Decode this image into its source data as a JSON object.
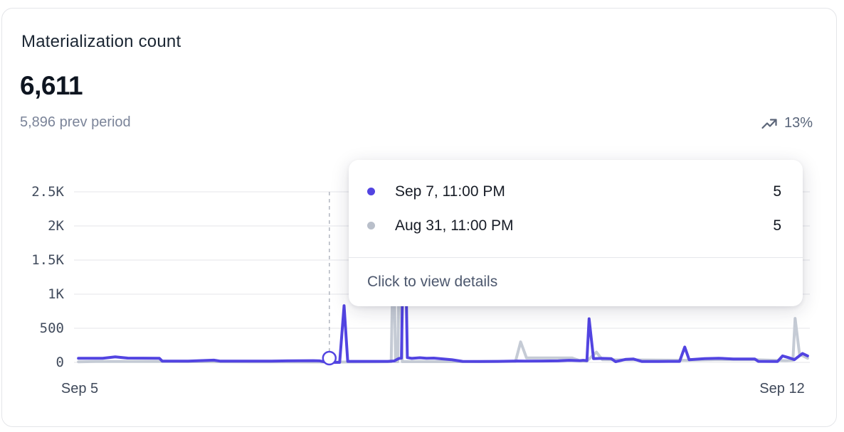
{
  "card": {
    "title": "Materialization count",
    "value": "6,611",
    "prev_period": "5,896 prev period",
    "trend_percent": "13%",
    "trend_icon": "trending-up"
  },
  "tooltip": {
    "rows": [
      {
        "label": "Sep 7, 11:00 PM",
        "value": "5",
        "color": "#5244e1"
      },
      {
        "label": "Aug 31, 11:00 PM",
        "value": "5",
        "color": "#b9bfca"
      }
    ],
    "footer": "Click to view details"
  },
  "chart_data": {
    "type": "line",
    "title": "Materialization count",
    "xlabel": "",
    "ylabel": "",
    "x_ticks": [
      "Sep 5",
      "Sep 12"
    ],
    "ylim": [
      0,
      2500
    ],
    "grid": true,
    "legend": "none",
    "y_ticks": [
      {
        "label": "2.5K",
        "value": 2500
      },
      {
        "label": "2K",
        "value": 2000
      },
      {
        "label": "1.5K",
        "value": 1500
      },
      {
        "label": "1K",
        "value": 1000
      },
      {
        "label": "500",
        "value": 500
      },
      {
        "label": "0",
        "value": 0
      }
    ],
    "colors": {
      "current": "#5244e1",
      "previous": "#c5cbd5",
      "grid": "#e9eaee",
      "guideline": "#b6bbc4"
    },
    "hover": {
      "t": 0.347,
      "label": "Sep 7, 11:00 PM",
      "value": 5
    },
    "series": [
      {
        "name": "previous",
        "color": "#c5cbd5",
        "points": [
          [
            0.006,
            8
          ],
          [
            0.03,
            12
          ],
          [
            0.116,
            12
          ],
          [
            0.24,
            8
          ],
          [
            0.33,
            5
          ],
          [
            0.368,
            5
          ],
          [
            0.41,
            8
          ],
          [
            0.431,
            10
          ],
          [
            0.434,
            1800
          ],
          [
            0.437,
            10
          ],
          [
            0.44,
            10
          ],
          [
            0.443,
            2400
          ],
          [
            0.446,
            10
          ],
          [
            0.48,
            10
          ],
          [
            0.54,
            10
          ],
          [
            0.6,
            15
          ],
          [
            0.607,
            300
          ],
          [
            0.615,
            65
          ],
          [
            0.677,
            65
          ],
          [
            0.689,
            20
          ],
          [
            0.697,
            20
          ],
          [
            0.71,
            150
          ],
          [
            0.718,
            40
          ],
          [
            0.774,
            35
          ],
          [
            0.832,
            30
          ],
          [
            0.87,
            40
          ],
          [
            0.925,
            40
          ],
          [
            0.967,
            25
          ],
          [
            0.977,
            30
          ],
          [
            0.98,
            645
          ],
          [
            0.986,
            120
          ],
          [
            0.997,
            60
          ]
        ]
      },
      {
        "name": "current",
        "color": "#5244e1",
        "points": [
          [
            0.006,
            60
          ],
          [
            0.039,
            60
          ],
          [
            0.056,
            80
          ],
          [
            0.073,
            62
          ],
          [
            0.116,
            60
          ],
          [
            0.12,
            18
          ],
          [
            0.155,
            18
          ],
          [
            0.19,
            32
          ],
          [
            0.199,
            18
          ],
          [
            0.261,
            18
          ],
          [
            0.29,
            22
          ],
          [
            0.325,
            25
          ],
          [
            0.334,
            22
          ],
          [
            0.34,
            8
          ],
          [
            0.347,
            5
          ],
          [
            0.354,
            0
          ],
          [
            0.361,
            0
          ],
          [
            0.367,
            830
          ],
          [
            0.372,
            15
          ],
          [
            0.426,
            15
          ],
          [
            0.435,
            20
          ],
          [
            0.441,
            55
          ],
          [
            0.445,
            62
          ],
          [
            0.449,
            2600
          ],
          [
            0.453,
            70
          ],
          [
            0.459,
            58
          ],
          [
            0.47,
            68
          ],
          [
            0.479,
            60
          ],
          [
            0.489,
            62
          ],
          [
            0.513,
            40
          ],
          [
            0.528,
            15
          ],
          [
            0.551,
            12
          ],
          [
            0.576,
            15
          ],
          [
            0.603,
            20
          ],
          [
            0.613,
            18
          ],
          [
            0.658,
            22
          ],
          [
            0.673,
            30
          ],
          [
            0.687,
            25
          ],
          [
            0.692,
            30
          ],
          [
            0.697,
            25
          ],
          [
            0.7,
            640
          ],
          [
            0.706,
            55
          ],
          [
            0.717,
            58
          ],
          [
            0.73,
            55
          ],
          [
            0.736,
            10
          ],
          [
            0.75,
            45
          ],
          [
            0.76,
            50
          ],
          [
            0.772,
            12
          ],
          [
            0.794,
            12
          ],
          [
            0.808,
            15
          ],
          [
            0.823,
            15
          ],
          [
            0.83,
            225
          ],
          [
            0.836,
            40
          ],
          [
            0.843,
            45
          ],
          [
            0.857,
            55
          ],
          [
            0.876,
            60
          ],
          [
            0.896,
            50
          ],
          [
            0.91,
            50
          ],
          [
            0.925,
            50
          ],
          [
            0.93,
            15
          ],
          [
            0.956,
            12
          ],
          [
            0.963,
            95
          ],
          [
            0.971,
            70
          ],
          [
            0.979,
            40
          ],
          [
            0.99,
            130
          ],
          [
            0.997,
            95
          ]
        ]
      }
    ]
  }
}
